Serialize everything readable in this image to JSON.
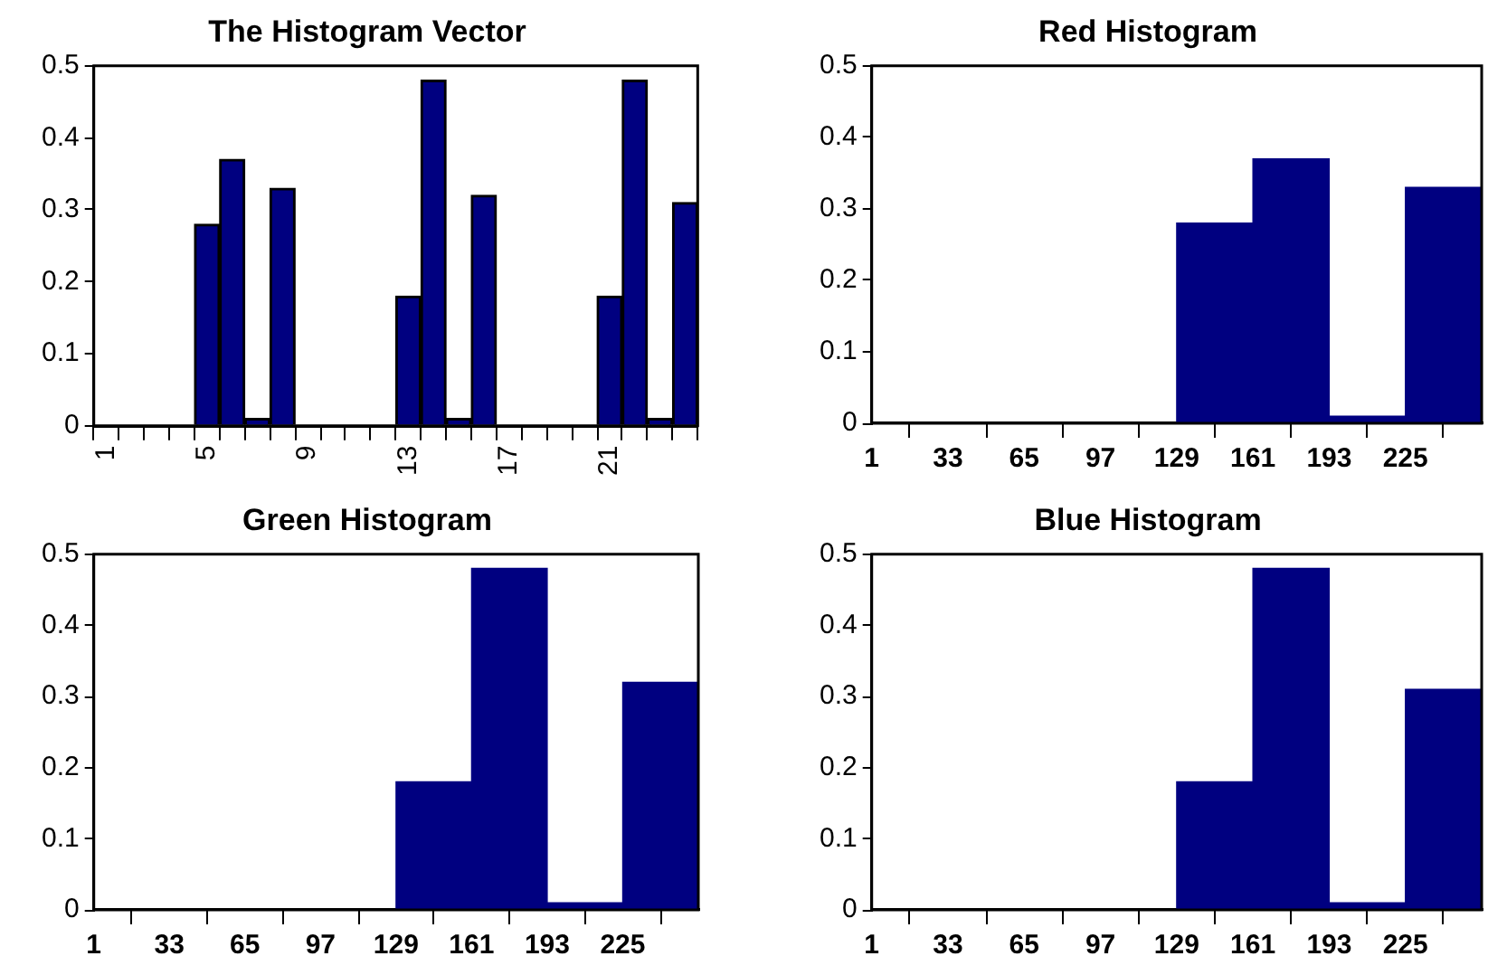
{
  "chart_data": [
    {
      "type": "bar",
      "title": "The Histogram Vector",
      "categories": [
        "1",
        null,
        null,
        null,
        "5",
        null,
        null,
        null,
        "9",
        null,
        null,
        null,
        "13",
        null,
        null,
        null,
        "17",
        null,
        null,
        null,
        "21",
        null,
        null,
        null
      ],
      "values": [
        0,
        0,
        0,
        0,
        0.28,
        0.37,
        0.01,
        0.33,
        0,
        0,
        0,
        0,
        0.18,
        0.48,
        0.01,
        0.32,
        0,
        0,
        0,
        0,
        0.18,
        0.48,
        0.01,
        0.31
      ],
      "color": "#000080",
      "ylim": [
        0,
        0.5
      ],
      "yticks": [
        0,
        0.1,
        0.2,
        0.3,
        0.4,
        0.5
      ],
      "grid": false
    },
    {
      "type": "histogram",
      "title": "Red Histogram",
      "bins": [
        1,
        33,
        65,
        97,
        129,
        161,
        193,
        225,
        257
      ],
      "values": [
        0,
        0,
        0,
        0,
        0.28,
        0.37,
        0.01,
        0.33
      ],
      "color": "#000080",
      "xlim": [
        1,
        257
      ],
      "xticks": [
        1,
        33,
        65,
        97,
        129,
        161,
        193,
        225
      ],
      "ylim": [
        0,
        0.5
      ],
      "yticks": [
        0,
        0.1,
        0.2,
        0.3,
        0.4,
        0.5
      ],
      "grid": false
    },
    {
      "type": "histogram",
      "title": "Green Histogram",
      "bins": [
        1,
        33,
        65,
        97,
        129,
        161,
        193,
        225,
        257
      ],
      "values": [
        0,
        0,
        0,
        0,
        0.18,
        0.48,
        0.01,
        0.32
      ],
      "color": "#000080",
      "xlim": [
        1,
        257
      ],
      "xticks": [
        1,
        33,
        65,
        97,
        129,
        161,
        193,
        225
      ],
      "ylim": [
        0,
        0.5
      ],
      "yticks": [
        0,
        0.1,
        0.2,
        0.3,
        0.4,
        0.5
      ],
      "grid": false
    },
    {
      "type": "histogram",
      "title": "Blue Histogram",
      "bins": [
        1,
        33,
        65,
        97,
        129,
        161,
        193,
        225,
        257
      ],
      "values": [
        0,
        0,
        0,
        0,
        0.18,
        0.48,
        0.01,
        0.31
      ],
      "color": "#000080",
      "xlim": [
        1,
        257
      ],
      "xticks": [
        1,
        33,
        65,
        97,
        129,
        161,
        193,
        225
      ],
      "ylim": [
        0,
        0.5
      ],
      "yticks": [
        0,
        0.1,
        0.2,
        0.3,
        0.4,
        0.5
      ],
      "grid": false
    }
  ]
}
